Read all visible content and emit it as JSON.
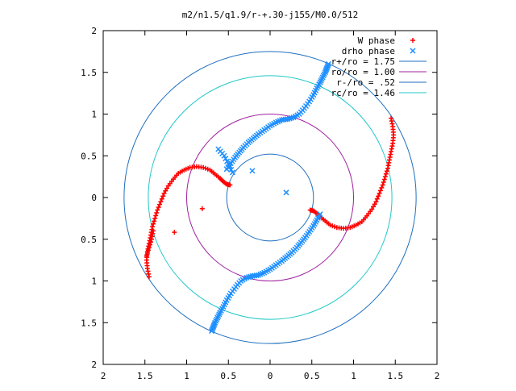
{
  "chart_data": {
    "type": "scatter",
    "title": "m2/n1.5/q1.9/r-+.30-j155/M0.0/512",
    "xlabel": "",
    "ylabel": "",
    "xlim": [
      -2,
      2
    ],
    "ylim": [
      -2,
      2
    ],
    "x_tick_values": [
      -2,
      -1.5,
      -1,
      -0.5,
      0,
      0.5,
      1,
      1.5,
      2
    ],
    "x_tick_labels": [
      "2",
      "1.5",
      "1",
      "0.5",
      "0",
      "0.5",
      "1",
      "1.5",
      "2"
    ],
    "y_tick_values": [
      2,
      1.5,
      1,
      0.5,
      0,
      -0.5,
      -1,
      -1.5,
      -2
    ],
    "y_tick_labels": [
      "2",
      "1.5",
      "1",
      "0.5",
      "0",
      "0.5",
      "1",
      "1.5",
      "2"
    ],
    "grid": false,
    "legend_position": "top-right",
    "circles": [
      {
        "name": "r+/ro = 1.75",
        "radius": 1.75,
        "color": "#1f6fbf"
      },
      {
        "name": "ro/ro = 1.00",
        "radius": 1.0,
        "color": "#a020a0"
      },
      {
        "name": "r-/ro = .52",
        "radius": 0.52,
        "color": "#1f6fbf"
      },
      {
        "name": "rc/ro = 1.46",
        "radius": 1.46,
        "color": "#20c8c8"
      }
    ],
    "series": [
      {
        "name": "W phase",
        "marker": "+",
        "color": "#ff0000",
        "x": [
          -1.45,
          -1.47,
          -1.48,
          -1.47,
          -1.45,
          -1.43,
          -1.41,
          -1.38,
          -1.35,
          -1.31,
          -1.27,
          -1.22,
          -1.16,
          -1.1,
          -1.03,
          -0.96,
          -0.88,
          -0.8,
          -0.72,
          -0.66,
          -0.6,
          -0.56,
          -0.52,
          -0.48,
          -1.48,
          -1.45,
          -1.42,
          -1.4
        ],
        "y": [
          -0.95,
          -0.85,
          -0.75,
          -0.65,
          -0.55,
          -0.45,
          -0.35,
          -0.25,
          -0.15,
          -0.05,
          0.05,
          0.14,
          0.22,
          0.29,
          0.33,
          0.36,
          0.37,
          0.36,
          0.33,
          0.28,
          0.23,
          0.19,
          0.16,
          0.15,
          -0.7,
          -0.6,
          -0.5,
          -0.4
        ],
        "x2": [
          1.45,
          1.47,
          1.48,
          1.47,
          1.45,
          1.43,
          1.41,
          1.38,
          1.35,
          1.31,
          1.27,
          1.22,
          1.16,
          1.1,
          1.03,
          0.96,
          0.88,
          0.8,
          0.72,
          0.66,
          0.6,
          0.56,
          0.52,
          0.48
        ],
        "y2": [
          0.95,
          0.85,
          0.75,
          0.65,
          0.55,
          0.45,
          0.35,
          0.25,
          0.15,
          0.05,
          -0.05,
          -0.14,
          -0.22,
          -0.29,
          -0.33,
          -0.36,
          -0.37,
          -0.36,
          -0.33,
          -0.28,
          -0.23,
          -0.19,
          -0.16,
          -0.15
        ]
      },
      {
        "name": "drho phase",
        "marker": "x",
        "color": "#1e8fff",
        "x": [
          -0.7,
          -0.68,
          -0.66,
          -0.63,
          -0.6,
          -0.56,
          -0.52,
          -0.47,
          -0.41,
          -0.35,
          -0.28,
          -0.21,
          -0.14,
          -0.07,
          0.0,
          0.07,
          0.14,
          0.2,
          0.26,
          0.32,
          0.37,
          0.42,
          0.47,
          0.52,
          0.56,
          0.6,
          -0.62,
          -0.55,
          -0.5,
          -0.45
        ],
        "y": [
          -1.6,
          -1.55,
          -1.5,
          -1.44,
          -1.38,
          -1.31,
          -1.23,
          -1.15,
          -1.07,
          -1.0,
          -0.96,
          -0.94,
          -0.93,
          -0.9,
          -0.86,
          -0.81,
          -0.76,
          -0.71,
          -0.66,
          -0.6,
          -0.54,
          -0.48,
          -0.41,
          -0.34,
          -0.27,
          -0.2,
          0.58,
          0.5,
          0.4,
          0.3
        ],
        "x2": [
          0.7,
          0.68,
          0.66,
          0.63,
          0.6,
          0.56,
          0.52,
          0.47,
          0.41,
          0.35,
          0.28,
          0.21,
          0.14,
          0.07,
          0.0,
          -0.07,
          -0.14,
          -0.2,
          -0.26,
          -0.32,
          -0.37,
          -0.42,
          -0.47,
          -0.52
        ],
        "y2": [
          1.6,
          1.55,
          1.5,
          1.44,
          1.38,
          1.31,
          1.23,
          1.15,
          1.07,
          1.0,
          0.96,
          0.94,
          0.93,
          0.9,
          0.86,
          0.81,
          0.76,
          0.71,
          0.66,
          0.6,
          0.54,
          0.48,
          0.41,
          0.34
        ]
      }
    ]
  }
}
